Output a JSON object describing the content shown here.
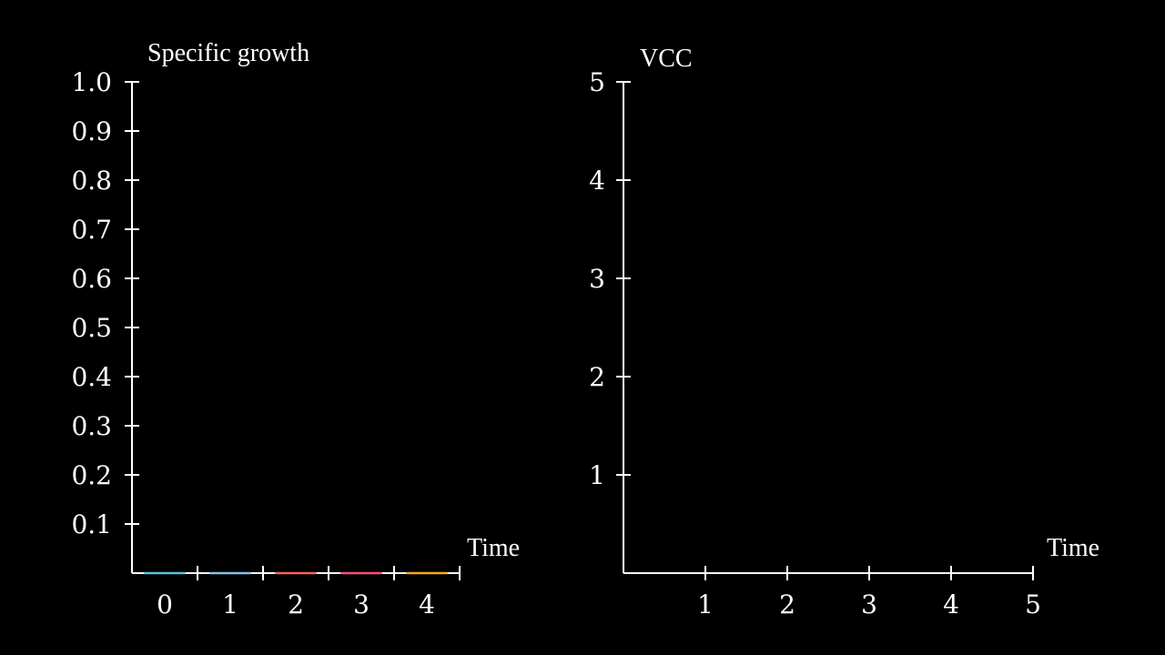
{
  "chart_data": [
    {
      "type": "bar",
      "title": "Specific growth",
      "xlabel": "Time",
      "ylabel": "",
      "categories": [
        "0",
        "1",
        "2",
        "3",
        "4"
      ],
      "values": [
        0,
        0,
        0,
        0,
        0
      ],
      "bar_colors": [
        "#58C4DD",
        "#83C1E6",
        "#FC6255",
        "#FF4F7D",
        "#F9A826"
      ],
      "yticks": [
        "0.1",
        "0.2",
        "0.3",
        "0.4",
        "0.5",
        "0.6",
        "0.7",
        "0.8",
        "0.9",
        "1.0"
      ],
      "ylim": [
        0,
        1.0
      ],
      "grid": false,
      "axis_color": "#ffffff",
      "background": "#000000"
    },
    {
      "type": "line",
      "title": "VCC",
      "xlabel": "Time",
      "ylabel": "",
      "xticks": [
        "1",
        "2",
        "3",
        "4",
        "5"
      ],
      "yticks": [
        "1",
        "2",
        "3",
        "4",
        "5"
      ],
      "xlim": [
        0,
        5
      ],
      "ylim": [
        0,
        5
      ],
      "series": [],
      "grid": false,
      "axis_color": "#ffffff",
      "background": "#000000"
    }
  ]
}
